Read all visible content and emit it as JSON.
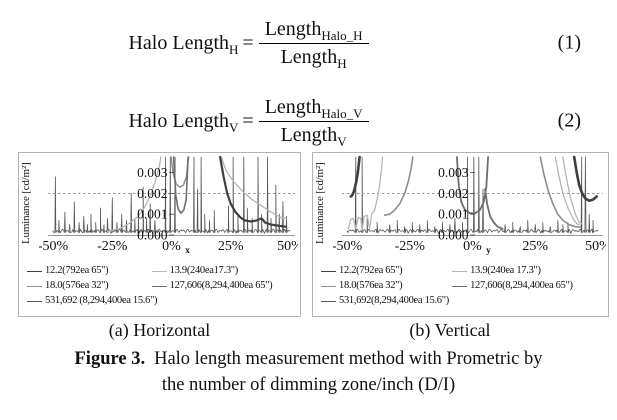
{
  "equations": [
    {
      "lhs": "Halo Length",
      "lhs_sub": "H",
      "sign": "=",
      "num": "Length",
      "num_sub": "Halo_H",
      "den": "Length",
      "den_sub": "H",
      "tag": "(1)"
    },
    {
      "lhs": "Halo Length",
      "lhs_sub": "V",
      "sign": "=",
      "num": "Length",
      "num_sub": "Halo_V",
      "den": "Length",
      "den_sub": "V",
      "tag": "(2)"
    }
  ],
  "figure": {
    "sub_a": "(a) Horizontal",
    "sub_b": "(b) Vertical",
    "label": "Figure 3.",
    "caption_line1": "Halo length measurement method with Prometric by",
    "caption_line2": "the number of dimming zone/inch (D/I)"
  },
  "chart_data": [
    {
      "type": "line",
      "panel": "(a) Horizontal",
      "ylabel": "Luminance [cd/m²]",
      "axis_var": "x",
      "xticks": [
        "-50%",
        "-25%",
        "0%",
        "25%",
        "50%"
      ],
      "yticks": [
        "0.000",
        "0.001",
        "0.002",
        "0.003"
      ],
      "xlim": [
        -50,
        50
      ],
      "ylim": [
        0,
        0.003
      ],
      "threshold": 0.002,
      "grid": false,
      "legend": [
        {
          "label": "12.2(792ea 65\")",
          "color": "#3f3f3f"
        },
        {
          "label": "13.9(240ea17.3\")",
          "color": "#b5b5b5"
        },
        {
          "label": "18.0(576ea 32\")",
          "color": "#8e8e8e"
        },
        {
          "label": "127,606(8,294,400ea 65\")",
          "color": "#6e6e6e"
        },
        {
          "label": "531,692 (8,294,400ea 15.6\")",
          "color": "#585858"
        }
      ],
      "series": [
        {
          "name": "13.9(240ea17.3\")",
          "color": "#b5b5b5",
          "width": 1.3,
          "segments": [
            [
              [
                -27,
                0.00018
              ],
              [
                -22,
                0.0003
              ],
              [
                -18,
                0.00055
              ],
              [
                -14,
                0.0009
              ],
              [
                -11,
                0.0014
              ],
              [
                -8.5,
                0.002
              ],
              [
                -6.5,
                0.0027
              ],
              [
                -5,
                0.0034
              ],
              [
                -4.5,
                0.0038
              ]
            ],
            [
              [
                21,
                0.0038
              ],
              [
                23,
                0.0031
              ],
              [
                26,
                0.0026
              ],
              [
                30,
                0.0021
              ],
              [
                34,
                0.0017
              ],
              [
                38,
                0.0014
              ],
              [
                42,
                0.0011
              ],
              [
                46,
                0.00085
              ],
              [
                48.5,
                0.0008
              ]
            ]
          ]
        },
        {
          "name": "18.0(576ea 32\")",
          "color": "#8e8e8e",
          "width": 1.5,
          "segments": [
            [
              [
                -0.2,
                0.0038
              ],
              [
                0.8,
                0.0029
              ],
              [
                2,
                0.00245
              ],
              [
                3.5,
                0.0023
              ],
              [
                5,
                0.0024
              ],
              [
                6.3,
                0.0028
              ],
              [
                7.2,
                0.0038
              ]
            ]
          ]
        },
        {
          "name": "127,606(8,294,400ea 65\")",
          "color": "#6e6e6e",
          "width": 1.6,
          "segments": [
            [
              [
                0.9,
                0.0038
              ],
              [
                1.8,
                0.0019
              ],
              [
                2.8,
                0.00125
              ],
              [
                4,
                0.00105
              ],
              [
                5.2,
                0.0012
              ],
              [
                6.2,
                0.0017
              ],
              [
                7,
                0.0038
              ]
            ]
          ]
        },
        {
          "name": "12.2(792ea 65\")",
          "color": "#3f3f3f",
          "width": 2.2,
          "segments": [
            [
              [
                20.5,
                0.0038
              ],
              [
                22,
                0.0028
              ],
              [
                23.5,
                0.002
              ],
              [
                25,
                0.0015
              ],
              [
                27,
                0.0011
              ],
              [
                29,
                0.00085
              ],
              [
                31,
                0.0007
              ],
              [
                33.5,
                0.00065
              ],
              [
                36,
                0.0007
              ],
              [
                38,
                0.0008
              ],
              [
                39.5,
                0.0006
              ],
              [
                42,
                0.0005
              ],
              [
                45,
                0.00045
              ],
              [
                48,
                0.0004
              ]
            ]
          ]
        }
      ],
      "noise": {
        "name": "531,692 (8,294,400ea 15.6\")",
        "color": "#585858",
        "base": 0.00015,
        "spikes": [
          [
            -49,
            0.0028
          ],
          [
            -47.5,
            0.0007
          ],
          [
            -45,
            0.0011
          ],
          [
            -43,
            0.0005
          ],
          [
            -41,
            0.0016
          ],
          [
            -39,
            0.0006
          ],
          [
            -37,
            0.0009
          ],
          [
            -35.5,
            0.0005
          ],
          [
            -34,
            0.001
          ],
          [
            -32,
            0.0006
          ],
          [
            -30,
            0.0013
          ],
          [
            -28.5,
            0.0005
          ],
          [
            -27,
            0.0008
          ],
          [
            -25,
            0.0018
          ],
          [
            -23,
            0.0006
          ],
          [
            -21,
            0.001
          ],
          [
            -19,
            0.0007
          ],
          [
            -17,
            0.002
          ],
          [
            -15.5,
            0.0008
          ],
          [
            -14,
            0.0012
          ],
          [
            -12,
            0.0023
          ],
          [
            -10.5,
            0.0008
          ],
          [
            -9,
            0.0015
          ],
          [
            -7,
            0.0007
          ],
          [
            -2.5,
            0.0038
          ],
          [
            -0.5,
            0.0038
          ],
          [
            1.5,
            0.0038
          ],
          [
            9.5,
            0.0038
          ],
          [
            11,
            0.0022
          ],
          [
            12.5,
            0.0038
          ],
          [
            14,
            0.001
          ],
          [
            16,
            0.0007
          ],
          [
            18,
            0.0012
          ],
          [
            24,
            0.0014
          ],
          [
            26,
            0.0038
          ],
          [
            28,
            0.0009
          ],
          [
            30.5,
            0.0038
          ],
          [
            32,
            0.0013
          ],
          [
            34,
            0.0008
          ],
          [
            36.5,
            0.0038
          ],
          [
            38,
            0.001
          ],
          [
            40.5,
            0.0038
          ],
          [
            42,
            0.0008
          ],
          [
            44,
            0.0024
          ],
          [
            45.5,
            0.001
          ],
          [
            47,
            0.0016
          ],
          [
            48.5,
            0.0009
          ]
        ]
      }
    },
    {
      "type": "line",
      "panel": "(b) Vertical",
      "ylabel": "Luminance [cd/m²]",
      "axis_var": "y",
      "xticks": [
        "-50%",
        "-25%",
        "0%",
        "25%",
        "50%"
      ],
      "yticks": [
        "0.000",
        "0.001",
        "0.002",
        "0.003"
      ],
      "xlim": [
        -50,
        50
      ],
      "ylim": [
        0,
        0.003
      ],
      "threshold": 0.002,
      "grid": false,
      "legend": [
        {
          "label": "12.2(792ea 65\")",
          "color": "#3f3f3f"
        },
        {
          "label": "13.9(240ea 17.3\")",
          "color": "#b5b5b5"
        },
        {
          "label": "18.0(576ea 32\")",
          "color": "#8e8e8e"
        },
        {
          "label": "127,606(8,294,400ea 65\")",
          "color": "#6e6e6e"
        },
        {
          "label": "531,692(8,294,400ea 15.6\")",
          "color": "#585858"
        }
      ],
      "series": [
        {
          "name": "13.9(240ea 17.3\")",
          "color": "#b5b5b5",
          "width": 1.3,
          "segments": [
            [
              [
                -49.5,
                0.0003
              ],
              [
                -48.5,
                0.00075
              ],
              [
                -47.5,
                0.0008
              ],
              [
                -46.5,
                0.0003
              ],
              [
                -45.5,
                0.00085
              ],
              [
                -44.5,
                0.0008
              ],
              [
                -44,
                0.0002
              ],
              [
                -43.2,
                0.0009
              ],
              [
                -42,
                0.00095
              ],
              [
                -41,
                0.0003
              ],
              [
                -40.2,
                0.001
              ],
              [
                -39,
                0.0012
              ],
              [
                -38,
                0.0017
              ],
              [
                -37,
                0.0024
              ],
              [
                -36.2,
                0.0032
              ],
              [
                -35.8,
                0.0038
              ]
            ],
            [
              [
                33,
                0.0038
              ],
              [
                34.5,
                0.0028
              ],
              [
                36,
                0.002
              ],
              [
                38,
                0.0013
              ],
              [
                40,
                0.0008
              ],
              [
                41.5,
                0.00055
              ],
              [
                42.5,
                0.0005
              ]
            ],
            [
              [
                36,
                0.0038
              ],
              [
                37.5,
                0.0027
              ],
              [
                39,
                0.0018
              ],
              [
                41,
                0.001
              ],
              [
                42.5,
                0.0006
              ],
              [
                43.5,
                0.00055
              ]
            ]
          ]
        },
        {
          "name": "18.0(576ea 32\")",
          "color": "#8e8e8e",
          "width": 1.6,
          "segments": [
            [
              [
                -35,
                0.00095
              ],
              [
                -33,
                0.001
              ],
              [
                -31,
                0.0012
              ],
              [
                -29,
                0.0015
              ],
              [
                -27,
                0.002
              ],
              [
                -25.5,
                0.0026
              ],
              [
                -24.3,
                0.0033
              ],
              [
                -23.8,
                0.0038
              ]
            ],
            [
              [
                27,
                0.0038
              ],
              [
                28.5,
                0.0029
              ],
              [
                30,
                0.0022
              ],
              [
                32,
                0.0015
              ],
              [
                34,
                0.001
              ],
              [
                36,
                0.0007
              ],
              [
                38.5,
                0.0005
              ],
              [
                41,
                0.0004
              ],
              [
                43,
                0.00038
              ]
            ]
          ]
        },
        {
          "name": "127,606(8,294,400ea 65\")",
          "color": "#6e6e6e",
          "width": 1.8,
          "segments": [
            [
              [
                -6.2,
                0.0038
              ],
              [
                -5.5,
                0.0024
              ],
              [
                -4.5,
                0.0016
              ],
              [
                -3,
                0.0012
              ],
              [
                -1,
                0.00105
              ],
              [
                1,
                0.00105
              ],
              [
                3,
                0.0012
              ],
              [
                4.5,
                0.0016
              ],
              [
                5.5,
                0.0023
              ],
              [
                6.2,
                0.0038
              ]
            ],
            [
              [
                5,
                0.0022
              ],
              [
                5.8,
                0.0015
              ],
              [
                7,
                0.0009
              ],
              [
                8.5,
                0.0006
              ],
              [
                10,
                0.0004
              ],
              [
                12,
                0.0003
              ]
            ]
          ]
        },
        {
          "name": "12.2(792ea 65\")",
          "color": "#3f3f3f",
          "width": 2.6,
          "segments": [
            [
              [
                -48.5,
                0.00185
              ],
              [
                -48,
                0.0019
              ],
              [
                -47.2,
                0.0021
              ],
              [
                -46.4,
                0.0025
              ],
              [
                -45.7,
                0.003
              ],
              [
                -45.2,
                0.0035
              ],
              [
                -45,
                0.0038
              ]
            ],
            [
              [
                40.5,
                0.0038
              ],
              [
                41.5,
                0.003
              ],
              [
                42.5,
                0.0024
              ],
              [
                43.7,
                0.002
              ],
              [
                45,
                0.00175
              ],
              [
                46.5,
                0.00165
              ],
              [
                48,
                0.0017
              ],
              [
                49.5,
                0.00185
              ]
            ]
          ]
        }
      ],
      "noise": {
        "name": "531,692(8,294,400ea 15.6\")",
        "color": "#585858",
        "base": 0.00015,
        "spikes": [
          [
            -46.5,
            0.0038
          ],
          [
            -44,
            0.0038
          ],
          [
            -42,
            0.0008
          ],
          [
            -38,
            0.0006
          ],
          [
            -33,
            0.0005
          ],
          [
            -30,
            0.0007
          ],
          [
            -27,
            0.0004
          ],
          [
            -24,
            0.0006
          ],
          [
            -21,
            0.0005
          ],
          [
            -18,
            0.0007
          ],
          [
            -15,
            0.0004
          ],
          [
            -12,
            0.0006
          ],
          [
            -9,
            0.0005
          ],
          [
            -7,
            0.0008
          ],
          [
            -4,
            0.0006
          ],
          [
            -2,
            0.0038
          ],
          [
            0.5,
            0.0038
          ],
          [
            2.5,
            0.0038
          ],
          [
            4.2,
            0.0022
          ],
          [
            13,
            0.0005
          ],
          [
            16,
            0.0006
          ],
          [
            19,
            0.0004
          ],
          [
            22,
            0.0007
          ],
          [
            25,
            0.0005
          ],
          [
            28,
            0.0006
          ],
          [
            31,
            0.0004
          ],
          [
            34,
            0.0007
          ],
          [
            36,
            0.0005
          ],
          [
            38,
            0.0006
          ],
          [
            43.5,
            0.0038
          ],
          [
            45,
            0.0038
          ],
          [
            46.5,
            0.001
          ],
          [
            48,
            0.0007
          ]
        ]
      }
    }
  ]
}
